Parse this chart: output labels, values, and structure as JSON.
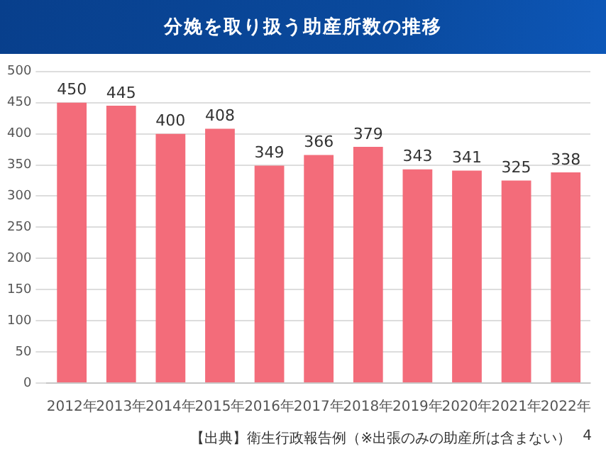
{
  "chart_data": {
    "type": "bar",
    "title": "分娩を取り扱う助産所数の推移",
    "categories": [
      "2012年",
      "2013年",
      "2014年",
      "2015年",
      "2016年",
      "2017年",
      "2018年",
      "2019年",
      "2020年",
      "2021年",
      "2022年"
    ],
    "values": [
      450,
      445,
      400,
      408,
      349,
      366,
      379,
      343,
      341,
      325,
      338
    ],
    "color": "#f36c7a",
    "ylim": [
      0,
      500
    ],
    "yticks": [
      0,
      50,
      100,
      150,
      200,
      250,
      300,
      350,
      400,
      450,
      500
    ],
    "grid": "y",
    "data_labels": true,
    "legend": false,
    "annotations": [
      "【出典】衛生行政報告例（※出張のみの助産所は含まない）",
      "4"
    ]
  }
}
